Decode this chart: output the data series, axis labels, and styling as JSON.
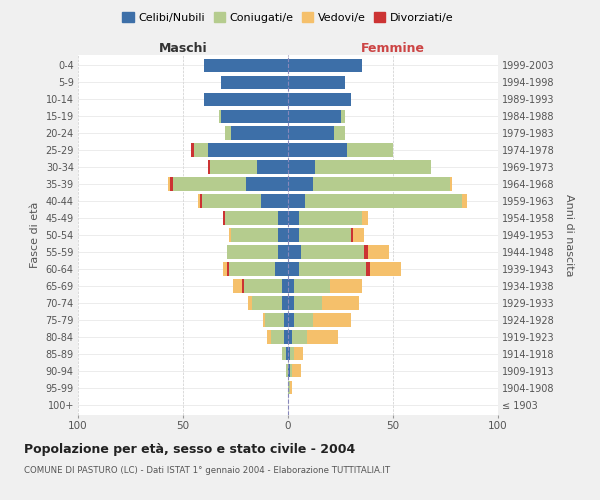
{
  "age_groups": [
    "100+",
    "95-99",
    "90-94",
    "85-89",
    "80-84",
    "75-79",
    "70-74",
    "65-69",
    "60-64",
    "55-59",
    "50-54",
    "45-49",
    "40-44",
    "35-39",
    "30-34",
    "25-29",
    "20-24",
    "15-19",
    "10-14",
    "5-9",
    "0-4"
  ],
  "birth_years": [
    "≤ 1903",
    "1904-1908",
    "1909-1913",
    "1914-1918",
    "1919-1923",
    "1924-1928",
    "1929-1933",
    "1934-1938",
    "1939-1943",
    "1944-1948",
    "1949-1953",
    "1954-1958",
    "1959-1963",
    "1964-1968",
    "1969-1973",
    "1974-1978",
    "1979-1983",
    "1984-1988",
    "1989-1993",
    "1994-1998",
    "1999-2003"
  ],
  "maschi": {
    "celibi": [
      0,
      0,
      0,
      1,
      2,
      2,
      3,
      3,
      6,
      5,
      5,
      5,
      13,
      20,
      15,
      38,
      27,
      32,
      40,
      32,
      40
    ],
    "coniugati": [
      0,
      0,
      1,
      2,
      6,
      9,
      14,
      18,
      22,
      24,
      22,
      25,
      28,
      35,
      22,
      7,
      3,
      1,
      0,
      0,
      0
    ],
    "vedovi": [
      0,
      0,
      0,
      0,
      2,
      1,
      2,
      4,
      2,
      0,
      1,
      0,
      1,
      1,
      0,
      0,
      0,
      0,
      0,
      0,
      0
    ],
    "divorziati": [
      0,
      0,
      0,
      0,
      0,
      0,
      0,
      1,
      1,
      0,
      0,
      1,
      1,
      1,
      1,
      1,
      0,
      0,
      0,
      0,
      0
    ]
  },
  "femmine": {
    "nubili": [
      0,
      0,
      1,
      1,
      2,
      3,
      3,
      3,
      5,
      6,
      5,
      5,
      8,
      12,
      13,
      28,
      22,
      25,
      30,
      27,
      35
    ],
    "coniugate": [
      0,
      1,
      1,
      2,
      7,
      9,
      13,
      17,
      32,
      30,
      25,
      30,
      75,
      65,
      55,
      22,
      5,
      2,
      0,
      0,
      0
    ],
    "vedove": [
      0,
      1,
      4,
      4,
      15,
      18,
      18,
      15,
      15,
      10,
      5,
      3,
      2,
      1,
      0,
      0,
      0,
      0,
      0,
      0,
      0
    ],
    "divorziate": [
      0,
      0,
      0,
      0,
      0,
      0,
      0,
      0,
      2,
      2,
      1,
      0,
      0,
      0,
      0,
      0,
      0,
      0,
      0,
      0,
      0
    ]
  },
  "colors": {
    "celibi_nubili": "#3d6fa8",
    "coniugati": "#b5cc8e",
    "vedovi": "#f5c06b",
    "divorziati": "#cc3333"
  },
  "title_main": "Popolazione per età, sesso e stato civile - 2004",
  "title_sub": "COMUNE DI PASTURO (LC) - Dati ISTAT 1° gennaio 2004 - Elaborazione TUTTITALIA.IT",
  "ylabel_left": "Fasce di età",
  "ylabel_right": "Anni di nascita",
  "xlabel_left": "Maschi",
  "xlabel_right": "Femmine",
  "xlim": 100,
  "background_color": "#f0f0f0",
  "plot_background": "#ffffff"
}
